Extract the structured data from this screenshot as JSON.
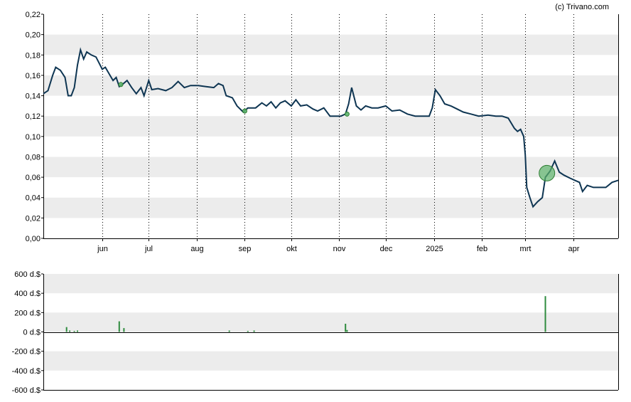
{
  "credit": "(c) Trivano.com",
  "colors": {
    "line": "#0e3552",
    "band": "#ececec",
    "volume_bar": "#2e8b3e",
    "marker_fill": "#5cb36b",
    "marker_stroke": "#2e7d32",
    "grid_dots": "#000000",
    "axis": "#000000"
  },
  "chart_data": [
    {
      "type": "line",
      "title": "",
      "xlabel": "",
      "ylabel": "",
      "ylim": [
        0,
        0.22
      ],
      "xlim": [
        "2024-04-24",
        "2025-04-30"
      ],
      "grid": {
        "horizontal_bands": true,
        "vertical_dotted_monthly": true
      },
      "y_tick_labels": [
        "0,00",
        "0,02",
        "0,04",
        "0,06",
        "0,08",
        "0,10",
        "0,12",
        "0,14",
        "0,16",
        "0,18",
        "0,20",
        "0,22"
      ],
      "x_tick_labels": [
        {
          "date": "2024-06-01",
          "label": "jun"
        },
        {
          "date": "2024-07-01",
          "label": "jul"
        },
        {
          "date": "2024-08-01",
          "label": "aug"
        },
        {
          "date": "2024-09-01",
          "label": "sep"
        },
        {
          "date": "2024-10-01",
          "label": "okt"
        },
        {
          "date": "2024-11-01",
          "label": "nov"
        },
        {
          "date": "2024-12-01",
          "label": "dec"
        },
        {
          "date": "2025-01-01",
          "label": "2025"
        },
        {
          "date": "2025-02-01",
          "label": "feb"
        },
        {
          "date": "2025-03-01",
          "label": "mrt"
        },
        {
          "date": "2025-04-01",
          "label": "apr"
        }
      ],
      "series": [
        {
          "points": [
            [
              "2024-04-24",
              0.142
            ],
            [
              "2024-04-27",
              0.145
            ],
            [
              "2024-04-30",
              0.16
            ],
            [
              "2024-05-02",
              0.168
            ],
            [
              "2024-05-05",
              0.165
            ],
            [
              "2024-05-08",
              0.158
            ],
            [
              "2024-05-10",
              0.14
            ],
            [
              "2024-05-12",
              0.14
            ],
            [
              "2024-05-14",
              0.148
            ],
            [
              "2024-05-16",
              0.17
            ],
            [
              "2024-05-18",
              0.185
            ],
            [
              "2024-05-20",
              0.176
            ],
            [
              "2024-05-22",
              0.183
            ],
            [
              "2024-05-25",
              0.18
            ],
            [
              "2024-05-28",
              0.178
            ],
            [
              "2024-05-30",
              0.172
            ],
            [
              "2024-06-01",
              0.166
            ],
            [
              "2024-06-03",
              0.168
            ],
            [
              "2024-06-06",
              0.16
            ],
            [
              "2024-06-08",
              0.155
            ],
            [
              "2024-06-10",
              0.158
            ],
            [
              "2024-06-12",
              0.149
            ],
            [
              "2024-06-14",
              0.151
            ],
            [
              "2024-06-17",
              0.155
            ],
            [
              "2024-06-20",
              0.148
            ],
            [
              "2024-06-23",
              0.142
            ],
            [
              "2024-06-26",
              0.148
            ],
            [
              "2024-06-28",
              0.14
            ],
            [
              "2024-07-01",
              0.155
            ],
            [
              "2024-07-03",
              0.146
            ],
            [
              "2024-07-07",
              0.147
            ],
            [
              "2024-07-12",
              0.145
            ],
            [
              "2024-07-16",
              0.148
            ],
            [
              "2024-07-20",
              0.154
            ],
            [
              "2024-07-24",
              0.148
            ],
            [
              "2024-07-28",
              0.15
            ],
            [
              "2024-08-02",
              0.15
            ],
            [
              "2024-08-07",
              0.149
            ],
            [
              "2024-08-12",
              0.148
            ],
            [
              "2024-08-15",
              0.152
            ],
            [
              "2024-08-18",
              0.15
            ],
            [
              "2024-08-20",
              0.14
            ],
            [
              "2024-08-24",
              0.138
            ],
            [
              "2024-08-27",
              0.13
            ],
            [
              "2024-08-31",
              0.124
            ],
            [
              "2024-09-03",
              0.128
            ],
            [
              "2024-09-08",
              0.128
            ],
            [
              "2024-09-12",
              0.133
            ],
            [
              "2024-09-15",
              0.13
            ],
            [
              "2024-09-18",
              0.134
            ],
            [
              "2024-09-21",
              0.128
            ],
            [
              "2024-09-24",
              0.133
            ],
            [
              "2024-09-27",
              0.135
            ],
            [
              "2024-10-01",
              0.13
            ],
            [
              "2024-10-04",
              0.136
            ],
            [
              "2024-10-07",
              0.13
            ],
            [
              "2024-10-11",
              0.131
            ],
            [
              "2024-10-15",
              0.127
            ],
            [
              "2024-10-18",
              0.125
            ],
            [
              "2024-10-22",
              0.128
            ],
            [
              "2024-10-26",
              0.12
            ],
            [
              "2024-10-29",
              0.12
            ],
            [
              "2024-11-02",
              0.12
            ],
            [
              "2024-11-05",
              0.122
            ],
            [
              "2024-11-07",
              0.132
            ],
            [
              "2024-11-09",
              0.148
            ],
            [
              "2024-11-12",
              0.13
            ],
            [
              "2024-11-15",
              0.126
            ],
            [
              "2024-11-18",
              0.13
            ],
            [
              "2024-11-22",
              0.128
            ],
            [
              "2024-11-26",
              0.128
            ],
            [
              "2024-12-01",
              0.13
            ],
            [
              "2024-12-05",
              0.125
            ],
            [
              "2024-12-10",
              0.126
            ],
            [
              "2024-12-15",
              0.122
            ],
            [
              "2024-12-20",
              0.12
            ],
            [
              "2024-12-24",
              0.12
            ],
            [
              "2024-12-29",
              0.12
            ],
            [
              "2024-12-31",
              0.128
            ],
            [
              "2025-01-02",
              0.146
            ],
            [
              "2025-01-05",
              0.14
            ],
            [
              "2025-01-08",
              0.132
            ],
            [
              "2025-01-12",
              0.13
            ],
            [
              "2025-01-16",
              0.127
            ],
            [
              "2025-01-20",
              0.124
            ],
            [
              "2025-01-25",
              0.122
            ],
            [
              "2025-01-30",
              0.12
            ],
            [
              "2025-02-05",
              0.121
            ],
            [
              "2025-02-10",
              0.12
            ],
            [
              "2025-02-14",
              0.12
            ],
            [
              "2025-02-18",
              0.118
            ],
            [
              "2025-02-22",
              0.108
            ],
            [
              "2025-02-24",
              0.105
            ],
            [
              "2025-02-26",
              0.107
            ],
            [
              "2025-02-28",
              0.1
            ],
            [
              "2025-03-01",
              0.082
            ],
            [
              "2025-03-02",
              0.05
            ],
            [
              "2025-03-04",
              0.04
            ],
            [
              "2025-03-06",
              0.031
            ],
            [
              "2025-03-09",
              0.036
            ],
            [
              "2025-03-12",
              0.04
            ],
            [
              "2025-03-14",
              0.06
            ],
            [
              "2025-03-17",
              0.066
            ],
            [
              "2025-03-20",
              0.076
            ],
            [
              "2025-03-23",
              0.065
            ],
            [
              "2025-03-26",
              0.062
            ],
            [
              "2025-03-30",
              0.059
            ],
            [
              "2025-04-02",
              0.057
            ],
            [
              "2025-04-05",
              0.055
            ],
            [
              "2025-04-07",
              0.046
            ],
            [
              "2025-04-10",
              0.052
            ],
            [
              "2025-04-14",
              0.05
            ],
            [
              "2025-04-18",
              0.05
            ],
            [
              "2025-04-22",
              0.05
            ],
            [
              "2025-04-26",
              0.055
            ],
            [
              "2025-04-30",
              0.057
            ]
          ]
        }
      ],
      "markers": [
        {
          "date": "2024-06-13",
          "value": 0.151,
          "size": "small"
        },
        {
          "date": "2024-09-01",
          "value": 0.125,
          "size": "small"
        },
        {
          "date": "2024-11-06",
          "value": 0.122,
          "size": "small"
        },
        {
          "date": "2025-03-15",
          "value": 0.064,
          "size": "large"
        }
      ]
    },
    {
      "type": "bar",
      "title": "",
      "xlabel": "",
      "ylabel": "",
      "ylim": [
        -600,
        600
      ],
      "grid": {
        "horizontal_bands": true
      },
      "y_tick_labels": [
        "600 d.$",
        "400 d.$",
        "200 d.$",
        "0 d.$",
        "-200 d.$",
        "-400 d.$",
        "-600 d.$"
      ],
      "y_ticks": [
        600,
        400,
        200,
        0,
        -200,
        -400,
        -600
      ],
      "bars": [
        [
          "2024-05-09",
          50
        ],
        [
          "2024-05-11",
          15
        ],
        [
          "2024-05-14",
          10
        ],
        [
          "2024-05-16",
          15
        ],
        [
          "2024-06-12",
          110
        ],
        [
          "2024-06-15",
          40
        ],
        [
          "2024-08-22",
          15
        ],
        [
          "2024-09-03",
          10
        ],
        [
          "2024-09-07",
          15
        ],
        [
          "2024-11-05",
          85
        ],
        [
          "2024-11-06",
          20
        ],
        [
          "2025-03-14",
          370
        ]
      ]
    }
  ]
}
